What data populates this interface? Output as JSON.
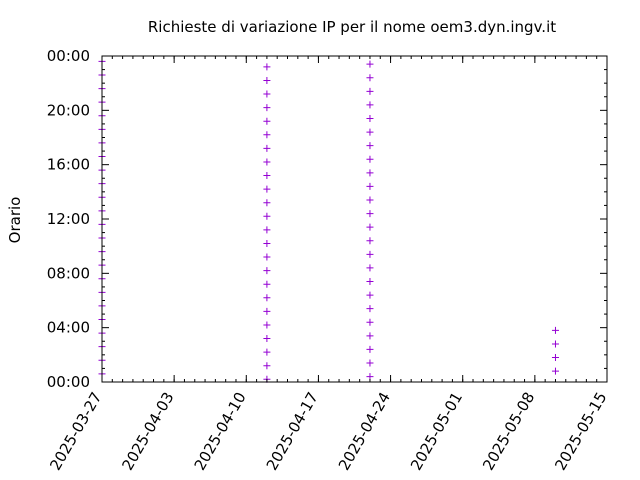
{
  "chart_data": {
    "type": "scatter",
    "title": "Richieste di variazione IP per il nome oem3.dyn.ingv.it",
    "xlabel": "",
    "ylabel": "Orario",
    "xlim": [
      "2025-03-27",
      "2025-05-15"
    ],
    "ylim": [
      "00:00",
      "24:00"
    ],
    "x_ticks": [
      "2025-03-27",
      "2025-04-03",
      "2025-04-10",
      "2025-04-17",
      "2025-04-24",
      "2025-05-01",
      "2025-05-08",
      "2025-05-15"
    ],
    "y_ticks": [
      "00:00",
      "04:00",
      "08:00",
      "12:00",
      "16:00",
      "20:00",
      "00:00"
    ],
    "grid": false,
    "legend": "none",
    "marker": "+",
    "marker_color": "#9400d3",
    "series": [
      {
        "points_per_day": [
          {
            "date": "2025-03-27",
            "hours": [
              0.6,
              1.6,
              2.6,
              3.6,
              4.6,
              5.6,
              6.6,
              7.6,
              8.6,
              9.6,
              10.6,
              11.6,
              12.6,
              13.6,
              14.6,
              15.6,
              16.6,
              17.6,
              18.6,
              19.6,
              20.6,
              21.6,
              22.6,
              23.6
            ]
          },
          {
            "date": "2025-04-12",
            "hours": [
              0.2,
              1.2,
              2.2,
              3.2,
              4.2,
              5.2,
              6.2,
              7.2,
              8.2,
              9.2,
              10.2,
              11.2,
              12.2,
              13.2,
              14.2,
              15.2,
              16.2,
              17.2,
              18.2,
              19.2,
              20.2,
              21.2,
              22.2,
              23.2
            ]
          },
          {
            "date": "2025-04-22",
            "hours": [
              0.4,
              1.4,
              2.4,
              3.4,
              4.4,
              5.4,
              6.4,
              7.4,
              8.4,
              9.4,
              10.4,
              11.4,
              12.4,
              13.4,
              14.4,
              15.4,
              16.4,
              17.4,
              18.4,
              19.4,
              20.4,
              21.4,
              22.4,
              23.4
            ]
          },
          {
            "date": "2025-05-10",
            "hours": [
              0.8,
              1.8,
              2.8,
              3.8
            ]
          }
        ]
      }
    ]
  }
}
